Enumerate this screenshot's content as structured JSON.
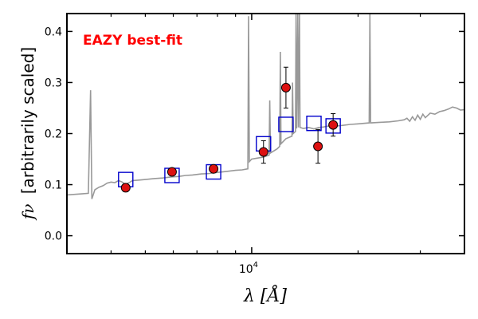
{
  "chart_data": {
    "type": "scatter",
    "title": "",
    "xlabel": "λ [Å]",
    "ylabel_prefix": "fν",
    "ylabel": "[arbitrarily scaled]",
    "x_scale": "log",
    "xlim": [
      3000,
      40000
    ],
    "ylim": [
      -0.035,
      0.435
    ],
    "yticks": [
      0.0,
      0.1,
      0.2,
      0.3,
      0.4
    ],
    "ytick_labels": [
      "0.0",
      "0.1",
      "0.2",
      "0.3",
      "0.4"
    ],
    "xtick_major_label": "10",
    "xtick_major_exp": "4",
    "grid": false,
    "annotation": {
      "text": "EAZY best-fit",
      "color": "#ff0000"
    },
    "colors": {
      "template": "#999999",
      "model_box": "#0000cc",
      "observed": "#dd1111",
      "errorbar": "#000000"
    },
    "observed": [
      {
        "x": 4400,
        "y": 0.094,
        "err": 0.008
      },
      {
        "x": 5950,
        "y": 0.125,
        "err": 0.005
      },
      {
        "x": 7800,
        "y": 0.131,
        "err": 0.005
      },
      {
        "x": 10800,
        "y": 0.164,
        "err": 0.022
      },
      {
        "x": 12500,
        "y": 0.29,
        "err": 0.04
      },
      {
        "x": 15400,
        "y": 0.175,
        "err": 0.033
      },
      {
        "x": 17000,
        "y": 0.217,
        "err": 0.022
      }
    ],
    "model": [
      {
        "x": 4400,
        "y": 0.11
      },
      {
        "x": 5950,
        "y": 0.118
      },
      {
        "x": 7800,
        "y": 0.125
      },
      {
        "x": 10800,
        "y": 0.18
      },
      {
        "x": 12500,
        "y": 0.218
      },
      {
        "x": 15000,
        "y": 0.22
      },
      {
        "x": 17000,
        "y": 0.215
      }
    ],
    "template": [
      [
        3000,
        0.08
      ],
      [
        3300,
        0.082
      ],
      [
        3450,
        0.083
      ],
      [
        3500,
        0.285
      ],
      [
        3530,
        0.072
      ],
      [
        3600,
        0.09
      ],
      [
        3700,
        0.095
      ],
      [
        3800,
        0.098
      ],
      [
        3900,
        0.103
      ],
      [
        4000,
        0.105
      ],
      [
        4100,
        0.104
      ],
      [
        4200,
        0.108
      ],
      [
        4300,
        0.105
      ],
      [
        4400,
        0.1
      ],
      [
        4500,
        0.104
      ],
      [
        4600,
        0.108
      ],
      [
        4800,
        0.109
      ],
      [
        5000,
        0.11
      ],
      [
        5300,
        0.112
      ],
      [
        5600,
        0.113
      ],
      [
        5900,
        0.115
      ],
      [
        6200,
        0.116
      ],
      [
        6500,
        0.118
      ],
      [
        6800,
        0.119
      ],
      [
        7200,
        0.121
      ],
      [
        7600,
        0.122
      ],
      [
        8000,
        0.124
      ],
      [
        8500,
        0.126
      ],
      [
        9000,
        0.128
      ],
      [
        9400,
        0.129
      ],
      [
        9750,
        0.131
      ],
      [
        9800,
        0.43
      ],
      [
        9850,
        0.145
      ],
      [
        10000,
        0.15
      ],
      [
        10400,
        0.152
      ],
      [
        10800,
        0.154
      ],
      [
        11200,
        0.158
      ],
      [
        11250,
        0.265
      ],
      [
        11300,
        0.162
      ],
      [
        11800,
        0.17
      ],
      [
        12000,
        0.175
      ],
      [
        12050,
        0.36
      ],
      [
        12100,
        0.18
      ],
      [
        12500,
        0.19
      ],
      [
        13000,
        0.195
      ],
      [
        13050,
        0.3
      ],
      [
        13100,
        0.2
      ],
      [
        13300,
        0.204
      ],
      [
        13350,
        0.435
      ],
      [
        13400,
        0.21
      ],
      [
        13500,
        0.435
      ],
      [
        13550,
        0.212
      ],
      [
        13650,
        0.435
      ],
      [
        13700,
        0.212
      ],
      [
        14000,
        0.21
      ],
      [
        14500,
        0.212
      ],
      [
        15000,
        0.209
      ],
      [
        15500,
        0.212
      ],
      [
        16000,
        0.213
      ],
      [
        16500,
        0.215
      ],
      [
        17000,
        0.214
      ],
      [
        18000,
        0.216
      ],
      [
        19000,
        0.218
      ],
      [
        20000,
        0.219
      ],
      [
        21500,
        0.221
      ],
      [
        21600,
        0.435
      ],
      [
        21700,
        0.221
      ],
      [
        23000,
        0.222
      ],
      [
        24500,
        0.223
      ],
      [
        26000,
        0.225
      ],
      [
        27000,
        0.227
      ],
      [
        27500,
        0.23
      ],
      [
        28000,
        0.224
      ],
      [
        28500,
        0.233
      ],
      [
        29000,
        0.226
      ],
      [
        29500,
        0.236
      ],
      [
        30000,
        0.228
      ],
      [
        30500,
        0.238
      ],
      [
        31000,
        0.231
      ],
      [
        32000,
        0.24
      ],
      [
        33000,
        0.238
      ],
      [
        34000,
        0.243
      ],
      [
        35000,
        0.245
      ],
      [
        36000,
        0.248
      ],
      [
        37000,
        0.252
      ],
      [
        38000,
        0.25
      ],
      [
        39000,
        0.246
      ],
      [
        40000,
        0.247
      ]
    ]
  }
}
